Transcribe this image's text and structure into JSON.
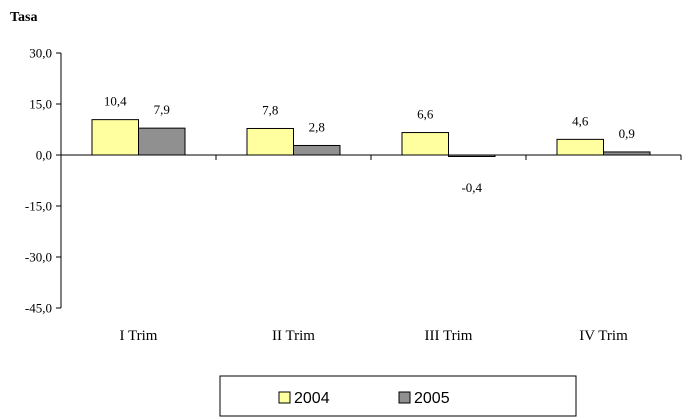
{
  "chart_data": {
    "type": "bar",
    "ylabel": "Tasa",
    "categories": [
      "I Trim",
      "II Trim",
      "III Trim",
      "IV Trim"
    ],
    "series": [
      {
        "name": "2004",
        "values": [
          10.4,
          7.8,
          6.6,
          4.6
        ],
        "labels": [
          "10,4",
          "7,8",
          "6,6",
          "4,6"
        ],
        "color": "#FFFFA0"
      },
      {
        "name": "2005",
        "values": [
          7.9,
          2.8,
          -0.4,
          0.9
        ],
        "labels": [
          "7,9",
          "2,8",
          "-0,4",
          "0,9"
        ],
        "color": "#909090"
      }
    ],
    "ylim": [
      -45,
      30
    ],
    "yticks": [
      30,
      15,
      0,
      -15,
      -30,
      -45
    ],
    "ytick_labels": [
      "30,0",
      "15,0",
      "0,0",
      "-15,0",
      "-30,0",
      "-45,0"
    ],
    "grid": false,
    "legend_position": "bottom"
  }
}
